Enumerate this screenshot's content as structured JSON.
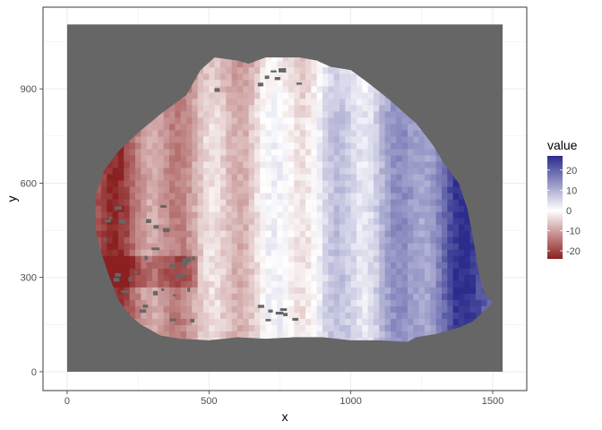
{
  "chart_data": {
    "type": "heatmap",
    "title": "",
    "xlabel": "x",
    "ylabel": "y",
    "xlim": [
      -85,
      1620
    ],
    "ylim": [
      -60,
      1160
    ],
    "x_ticks": [
      0,
      500,
      1000,
      1500
    ],
    "y_ticks": [
      0,
      300,
      600,
      900
    ],
    "x_tick_labels": [
      "0",
      "500",
      "1000",
      "1500"
    ],
    "y_tick_labels": [
      "0",
      "300",
      "600",
      "900"
    ],
    "background_extent": {
      "x": [
        0,
        1535
      ],
      "y": [
        0,
        1105
      ]
    },
    "background_color": "#666666",
    "grid": true,
    "legend": {
      "title": "value",
      "position": "right",
      "range": [
        -24,
        27
      ],
      "ticks": [
        20,
        10,
        0,
        -10,
        -20
      ],
      "tick_labels": [
        "20",
        "10",
        "0",
        "-10",
        "-20"
      ],
      "colors": {
        "low": "#8b2020",
        "mid": "#ffffff",
        "high": "#2b2c8c"
      }
    },
    "value_field": {
      "description": "approximate surface of values over the shaded region",
      "x_range": [
        100,
        1530
      ],
      "y_range": [
        90,
        1000
      ],
      "trend_by_x": [
        {
          "x": 150,
          "value": -20
        },
        {
          "x": 300,
          "value": -12
        },
        {
          "x": 550,
          "value": -6
        },
        {
          "x": 800,
          "value": 0
        },
        {
          "x": 1000,
          "value": 6
        },
        {
          "x": 1200,
          "value": 12
        },
        {
          "x": 1400,
          "value": 24
        }
      ]
    }
  }
}
